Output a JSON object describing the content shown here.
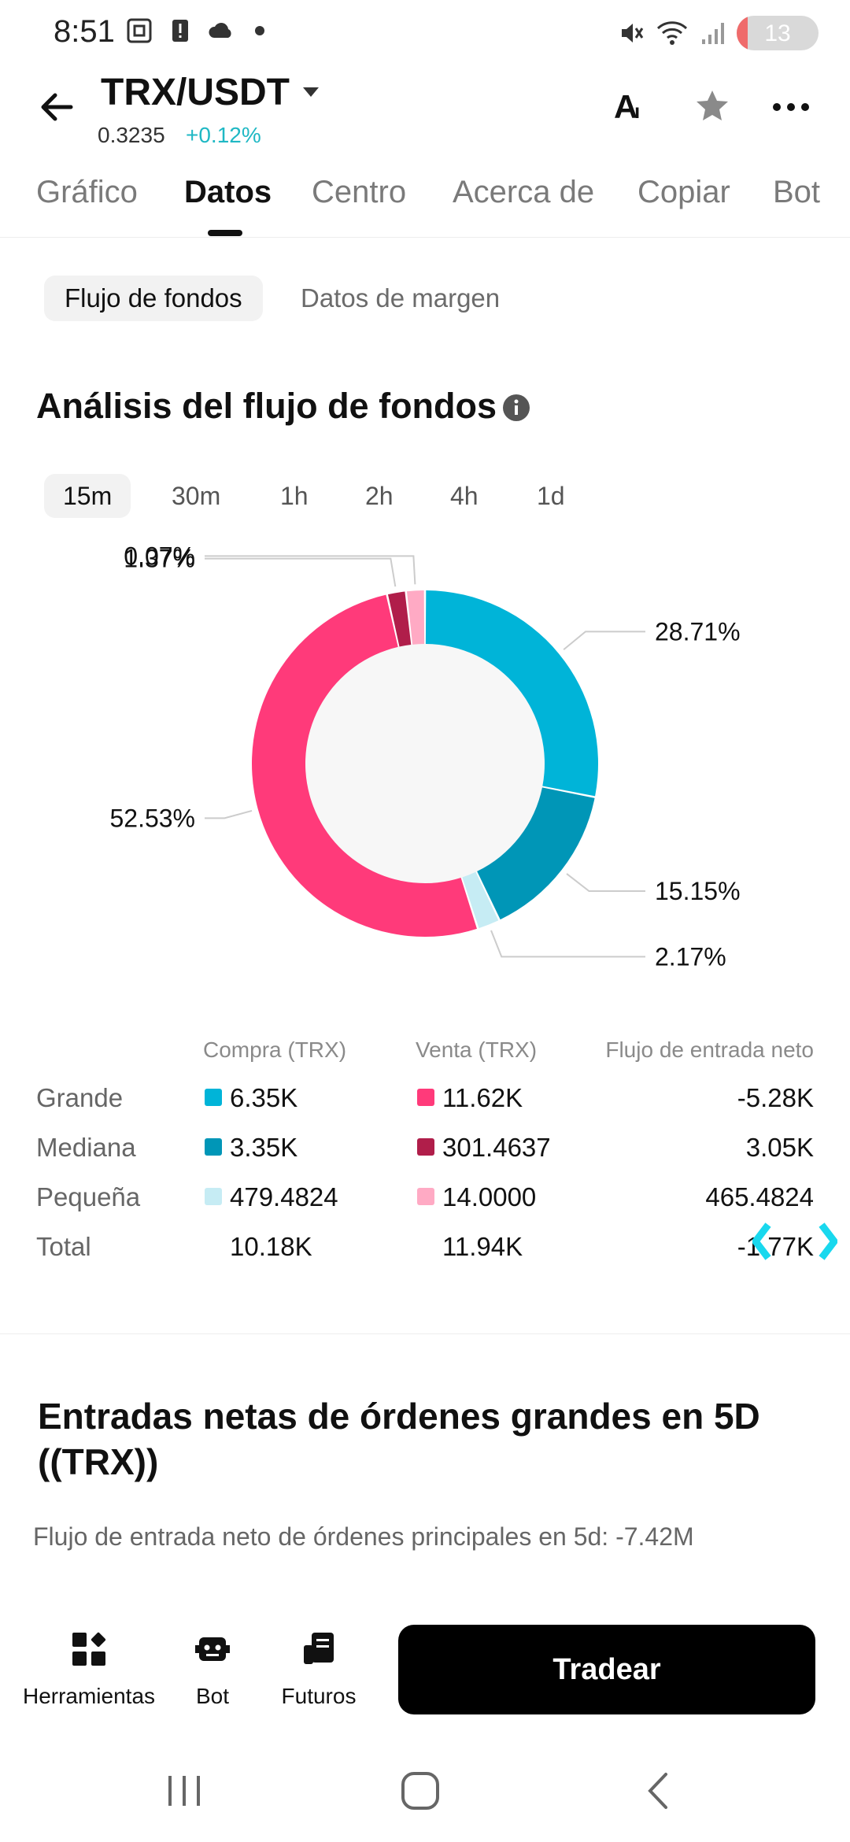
{
  "status_bar": {
    "time": "8:51",
    "battery_level": "13",
    "battery_fraction": 0.13
  },
  "header": {
    "pair": "TRX/USDT",
    "price": "0.3235",
    "change": "+0.12%",
    "change_color": "#1fb8c4",
    "icons": [
      "font-size-icon",
      "star-icon",
      "more-icon"
    ]
  },
  "tabs": [
    "Gráfico",
    "Datos",
    "Centro",
    "Acerca de",
    "Copiar",
    "Bot"
  ],
  "active_tab": "Datos",
  "subtabs": [
    "Flujo de fondos",
    "Datos de margen"
  ],
  "section": {
    "title": "Análisis del flujo de fondos"
  },
  "timeframes": [
    "15m",
    "30m",
    "1h",
    "2h",
    "4h",
    "1d"
  ],
  "active_timeframe": "15m",
  "chart_data": {
    "type": "pie",
    "title": "",
    "variant": "donut",
    "slices": [
      {
        "label": "28.71%",
        "value": 28.71,
        "color": "#00b4d8"
      },
      {
        "label": "15.15%",
        "value": 15.15,
        "color": "#0096b7"
      },
      {
        "label": "2.17%",
        "value": 2.17,
        "color": "#c6ecf4"
      },
      {
        "label": "52.53%",
        "value": 52.53,
        "color": "#ff3a7a"
      },
      {
        "label": "1.37%",
        "value": 1.37,
        "color": "#b01e4a"
      },
      {
        "label": "0.07%",
        "value": 0.07,
        "color": "#ffaac4"
      }
    ]
  },
  "table": {
    "headers": [
      "Compra (TRX)",
      "Venta (TRX)",
      "Flujo de entrada neto"
    ],
    "rows": [
      {
        "label": "Grande",
        "buy": "6.35K",
        "buy_color": "#00b4d8",
        "sell": "11.62K",
        "sell_color": "#ff3a7a",
        "net": "-5.28K"
      },
      {
        "label": "Mediana",
        "buy": "3.35K",
        "buy_color": "#0096b7",
        "sell": "301.4637",
        "sell_color": "#b01e4a",
        "net": "3.05K"
      },
      {
        "label": "Pequeña",
        "buy": "479.4824",
        "buy_color": "#c6ecf4",
        "sell": "14.0000",
        "sell_color": "#ffaac4",
        "net": "465.4824"
      },
      {
        "label": "Total",
        "buy": "10.18K",
        "sell": "11.94K",
        "net": "-1.77K"
      }
    ]
  },
  "section2": {
    "title": "Entradas netas de órdenes grandes en 5D ((TRX))",
    "subtitle": "Flujo de entrada neto de órdenes principales en 5d: -7.42M"
  },
  "bottom_bar": {
    "items": [
      {
        "label": "Herramientas",
        "icon": "tools-icon"
      },
      {
        "label": "Bot",
        "icon": "bot-icon"
      },
      {
        "label": "Futuros",
        "icon": "futures-icon"
      }
    ],
    "trade_label": "Tradear"
  }
}
